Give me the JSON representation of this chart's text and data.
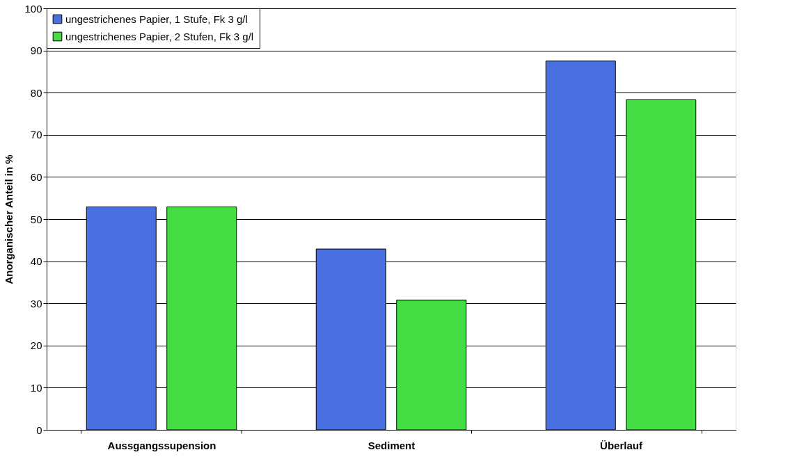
{
  "chart_data": {
    "type": "bar",
    "ylabel": "Anorganischer Anteil in %",
    "categories": [
      "Aussgangssupension",
      "Sediment",
      "Überlauf"
    ],
    "series": [
      {
        "name": "ungestrichenes Papier, 1 Stufe, Fk 3 g/l",
        "color": "#4a6fe0",
        "values": [
          52.9,
          42.9,
          87.5
        ]
      },
      {
        "name": "ungestrichenes Papier, 2 Stufen, Fk 3 g/l",
        "color": "#44dd44",
        "values": [
          52.9,
          30.8,
          78.3
        ]
      }
    ],
    "ylim": [
      0,
      100
    ],
    "yticks": [
      0,
      10,
      20,
      30,
      40,
      50,
      60,
      70,
      80,
      90,
      100
    ],
    "grid": "y",
    "legend": "top left"
  }
}
